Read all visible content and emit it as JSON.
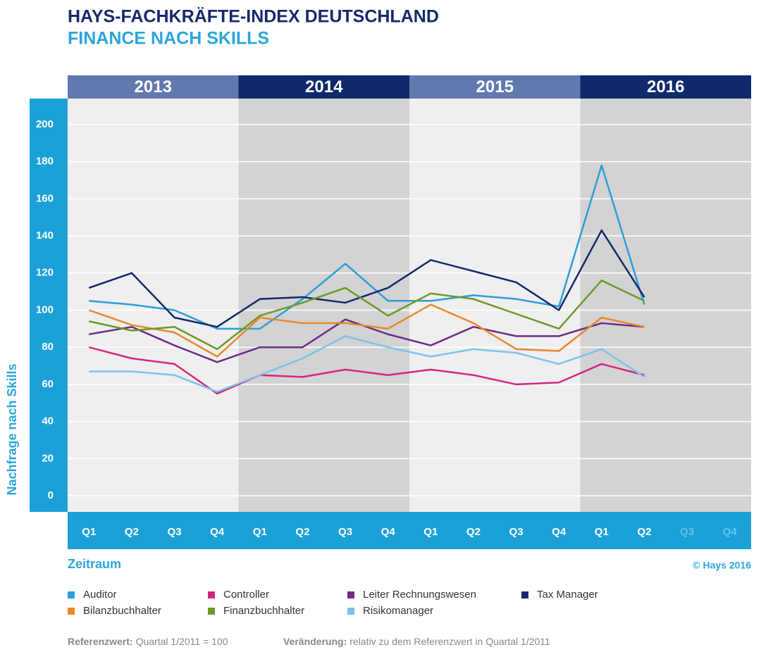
{
  "chart_data": {
    "type": "line",
    "title": "HAYS-FACHKRÄFTE-INDEX DEUTSCHLAND",
    "subtitle": "FINANCE NACH SKILLS",
    "year_labels": [
      "2013",
      "2014",
      "2015",
      "2016"
    ],
    "categories": [
      "Q1",
      "Q2",
      "Q3",
      "Q4",
      "Q1",
      "Q2",
      "Q3",
      "Q4",
      "Q1",
      "Q2",
      "Q3",
      "Q4",
      "Q1",
      "Q2",
      "Q3",
      "Q4"
    ],
    "ylabel": "Nachfrage nach Skills",
    "xlabel": "Zeitraum",
    "copyright": "© Hays 2016",
    "ylim": [
      -8.7,
      214
    ],
    "yticks": [
      0,
      20,
      40,
      60,
      80,
      100,
      120,
      140,
      160,
      180,
      200
    ],
    "grid": true,
    "series": [
      {
        "name": "Auditor",
        "color": "#2b9fd6",
        "values": [
          105,
          103,
          100,
          90,
          90,
          106,
          125,
          105,
          105,
          108,
          106,
          102,
          178,
          103,
          null,
          null
        ]
      },
      {
        "name": "Controller",
        "color": "#d4267f",
        "values": [
          80,
          74,
          71,
          55,
          65,
          64,
          68,
          65,
          68,
          65,
          60,
          61,
          71,
          65,
          null,
          null
        ]
      },
      {
        "name": "Leiter Rechnungswesen",
        "color": "#6b2d86",
        "values": [
          87,
          91,
          81,
          72,
          80,
          80,
          95,
          87,
          81,
          91,
          86,
          86,
          93,
          91,
          null,
          null
        ]
      },
      {
        "name": "Tax Manager",
        "color": "#15296b",
        "values": [
          112,
          120,
          96,
          91,
          106,
          107,
          104,
          112,
          127,
          121,
          115,
          100,
          143,
          107,
          null,
          null
        ]
      },
      {
        "name": "Bilanzbuchhalter",
        "color": "#e8892b",
        "values": [
          100,
          92,
          88,
          75,
          96,
          93,
          93,
          90,
          103,
          93,
          79,
          78,
          96,
          91,
          null,
          null
        ]
      },
      {
        "name": "Finanzbuchhalter",
        "color": "#6a9a2a",
        "values": [
          94,
          89,
          91,
          79,
          97,
          104,
          112,
          97,
          109,
          106,
          98,
          90,
          116,
          105,
          null,
          null
        ]
      },
      {
        "name": "Risikomanager",
        "color": "#7cc3e9",
        "values": [
          67,
          67,
          65,
          56,
          65,
          74,
          86,
          80,
          75,
          79,
          77,
          71,
          79,
          64,
          null,
          null
        ]
      }
    ],
    "notes": [
      {
        "label": "Referenzwert:",
        "text": "Quartal 1/2011 = 100"
      },
      {
        "label": "Veränderung:",
        "text": "relativ zu dem Referenzwert in Quartal 1/2011"
      }
    ]
  }
}
